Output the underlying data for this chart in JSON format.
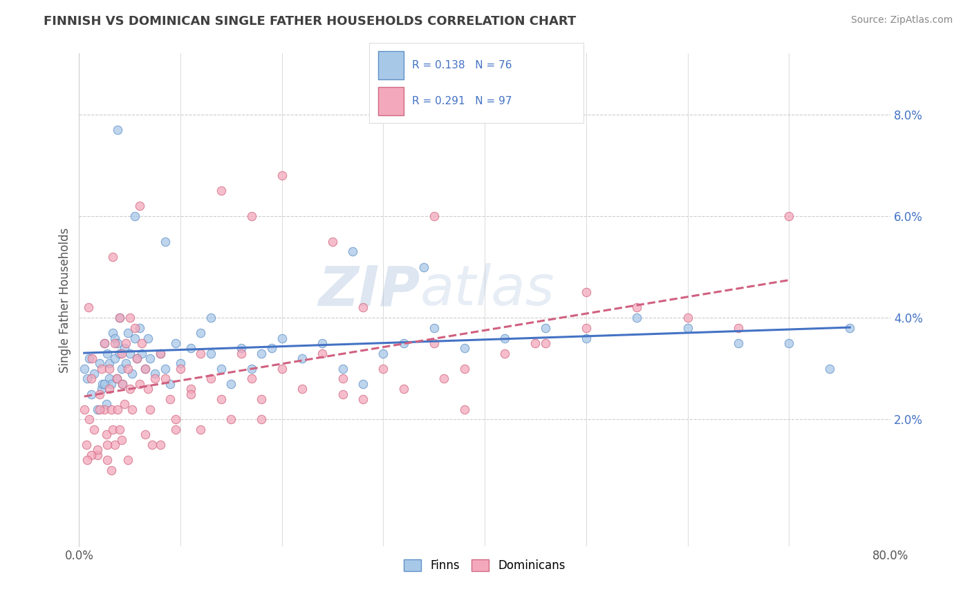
{
  "title": "FINNISH VS DOMINICAN SINGLE FATHER HOUSEHOLDS CORRELATION CHART",
  "source": "Source: ZipAtlas.com",
  "ylabel": "Single Father Households",
  "xlim": [
    0.0,
    0.8
  ],
  "ylim": [
    -0.005,
    0.092
  ],
  "yticks": [
    0.02,
    0.04,
    0.06,
    0.08
  ],
  "ytick_labels": [
    "2.0%",
    "4.0%",
    "6.0%",
    "8.0%"
  ],
  "finn_R": 0.138,
  "finn_N": 76,
  "dom_R": 0.291,
  "dom_N": 97,
  "finn_color": "#A8C8E8",
  "dom_color": "#F4A8BC",
  "finn_edge_color": "#6090C8",
  "dom_edge_color": "#D06880",
  "finn_line_color": "#4472C4",
  "dom_line_color": "#D06080",
  "background_color": "#FFFFFF",
  "grid_color": "#CCCCCC",
  "title_color": "#404040",
  "legend_text_color": "#4472C4",
  "watermark_text": "ZIPatlas",
  "finn_x": [
    0.005,
    0.008,
    0.01,
    0.012,
    0.015,
    0.018,
    0.02,
    0.022,
    0.023,
    0.025,
    0.027,
    0.028,
    0.03,
    0.03,
    0.032,
    0.033,
    0.035,
    0.035,
    0.037,
    0.038,
    0.04,
    0.04,
    0.042,
    0.043,
    0.045,
    0.046,
    0.048,
    0.05,
    0.052,
    0.055,
    0.057,
    0.06,
    0.062,
    0.065,
    0.068,
    0.07,
    0.075,
    0.08,
    0.085,
    0.09,
    0.095,
    0.1,
    0.11,
    0.12,
    0.13,
    0.14,
    0.15,
    0.16,
    0.17,
    0.18,
    0.2,
    0.22,
    0.24,
    0.26,
    0.28,
    0.3,
    0.32,
    0.35,
    0.38,
    0.42,
    0.46,
    0.5,
    0.55,
    0.6,
    0.65,
    0.7,
    0.74,
    0.76,
    0.34,
    0.27,
    0.19,
    0.13,
    0.085,
    0.055,
    0.038,
    0.025
  ],
  "finn_y": [
    0.03,
    0.028,
    0.032,
    0.025,
    0.029,
    0.022,
    0.031,
    0.026,
    0.027,
    0.035,
    0.023,
    0.033,
    0.028,
    0.031,
    0.027,
    0.037,
    0.036,
    0.032,
    0.028,
    0.035,
    0.04,
    0.033,
    0.03,
    0.027,
    0.034,
    0.031,
    0.037,
    0.033,
    0.029,
    0.036,
    0.032,
    0.038,
    0.033,
    0.03,
    0.036,
    0.032,
    0.029,
    0.033,
    0.03,
    0.027,
    0.035,
    0.031,
    0.034,
    0.037,
    0.033,
    0.03,
    0.027,
    0.034,
    0.03,
    0.033,
    0.036,
    0.032,
    0.035,
    0.03,
    0.027,
    0.033,
    0.035,
    0.038,
    0.034,
    0.036,
    0.038,
    0.036,
    0.04,
    0.038,
    0.035,
    0.035,
    0.03,
    0.038,
    0.05,
    0.053,
    0.034,
    0.04,
    0.055,
    0.06,
    0.077,
    0.027
  ],
  "dom_x": [
    0.005,
    0.007,
    0.01,
    0.012,
    0.015,
    0.018,
    0.02,
    0.022,
    0.025,
    0.027,
    0.028,
    0.03,
    0.03,
    0.032,
    0.033,
    0.035,
    0.035,
    0.037,
    0.038,
    0.04,
    0.04,
    0.042,
    0.043,
    0.045,
    0.046,
    0.048,
    0.05,
    0.052,
    0.055,
    0.057,
    0.06,
    0.062,
    0.065,
    0.068,
    0.07,
    0.075,
    0.08,
    0.085,
    0.09,
    0.095,
    0.1,
    0.11,
    0.12,
    0.13,
    0.14,
    0.15,
    0.16,
    0.17,
    0.18,
    0.2,
    0.22,
    0.24,
    0.26,
    0.28,
    0.3,
    0.32,
    0.35,
    0.38,
    0.42,
    0.46,
    0.5,
    0.55,
    0.6,
    0.65,
    0.7,
    0.5,
    0.38,
    0.28,
    0.2,
    0.14,
    0.095,
    0.065,
    0.042,
    0.028,
    0.018,
    0.012,
    0.008,
    0.025,
    0.05,
    0.08,
    0.12,
    0.18,
    0.26,
    0.36,
    0.45,
    0.35,
    0.25,
    0.17,
    0.11,
    0.072,
    0.048,
    0.032,
    0.02,
    0.013,
    0.009,
    0.033,
    0.06
  ],
  "dom_y": [
    0.022,
    0.015,
    0.02,
    0.028,
    0.018,
    0.013,
    0.025,
    0.03,
    0.022,
    0.017,
    0.012,
    0.026,
    0.03,
    0.022,
    0.018,
    0.015,
    0.035,
    0.028,
    0.022,
    0.018,
    0.04,
    0.033,
    0.027,
    0.023,
    0.035,
    0.03,
    0.026,
    0.022,
    0.038,
    0.032,
    0.027,
    0.035,
    0.03,
    0.026,
    0.022,
    0.028,
    0.033,
    0.028,
    0.024,
    0.02,
    0.03,
    0.026,
    0.033,
    0.028,
    0.024,
    0.02,
    0.033,
    0.028,
    0.024,
    0.03,
    0.026,
    0.033,
    0.028,
    0.024,
    0.03,
    0.026,
    0.035,
    0.03,
    0.033,
    0.035,
    0.038,
    0.042,
    0.04,
    0.038,
    0.06,
    0.045,
    0.022,
    0.042,
    0.068,
    0.065,
    0.018,
    0.017,
    0.016,
    0.015,
    0.014,
    0.013,
    0.012,
    0.035,
    0.04,
    0.015,
    0.018,
    0.02,
    0.025,
    0.028,
    0.035,
    0.06,
    0.055,
    0.06,
    0.025,
    0.015,
    0.012,
    0.01,
    0.022,
    0.032,
    0.042,
    0.052,
    0.062
  ]
}
